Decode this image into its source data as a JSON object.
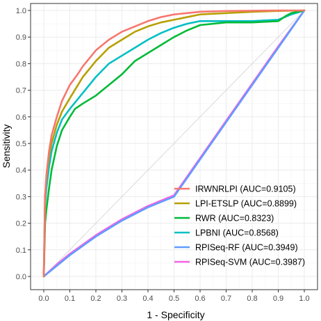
{
  "chart_data": {
    "type": "line",
    "xlabel": "1 - Specificity",
    "ylabel": "Sensitivity",
    "xlim": [
      0,
      1
    ],
    "ylim": [
      0,
      1
    ],
    "x_ticks": [
      0.0,
      0.1,
      0.2,
      0.3,
      0.4,
      0.5,
      0.6,
      0.7,
      0.8,
      0.9,
      1.0
    ],
    "x_tick_labels": [
      "0.0",
      "0.1",
      "0.2",
      "0.3",
      "0.4",
      "0.5",
      "0.6",
      "0.7",
      "0.8",
      "0.9",
      "1.0"
    ],
    "y_ticks": [
      0.0,
      0.1,
      0.2,
      0.3,
      0.4,
      0.5,
      0.6,
      0.7,
      0.8,
      0.9,
      1.0
    ],
    "y_tick_labels": [
      "0.0",
      "0.1",
      "0.2",
      "0.3",
      "0.4",
      "0.5",
      "0.6",
      "0.7",
      "0.8",
      "0.9",
      "1.0"
    ],
    "grid": true,
    "legend_position": "bottom-right",
    "diagonal_reference": true,
    "series": [
      {
        "name": "IRWNRLPI (AUC=0.9105)",
        "color": "#f8766d",
        "x": [
          0,
          0.005,
          0.01,
          0.02,
          0.03,
          0.05,
          0.07,
          0.1,
          0.13,
          0.15,
          0.2,
          0.25,
          0.3,
          0.35,
          0.4,
          0.45,
          0.5,
          0.55,
          0.6,
          0.7,
          0.8,
          0.9,
          1.0
        ],
        "y": [
          0,
          0.3,
          0.38,
          0.47,
          0.53,
          0.6,
          0.66,
          0.72,
          0.76,
          0.79,
          0.85,
          0.89,
          0.92,
          0.94,
          0.96,
          0.975,
          0.985,
          0.99,
          0.995,
          0.998,
          0.999,
          1.0,
          1.0
        ]
      },
      {
        "name": "LPI-ETSLP (AUC=0.8899)",
        "color": "#b79f00",
        "x": [
          0,
          0.005,
          0.01,
          0.02,
          0.03,
          0.05,
          0.07,
          0.1,
          0.15,
          0.2,
          0.25,
          0.3,
          0.35,
          0.4,
          0.45,
          0.5,
          0.55,
          0.6,
          0.7,
          0.8,
          0.9,
          1.0
        ],
        "y": [
          0,
          0.3,
          0.37,
          0.45,
          0.5,
          0.57,
          0.62,
          0.67,
          0.75,
          0.81,
          0.86,
          0.89,
          0.92,
          0.94,
          0.955,
          0.965,
          0.975,
          0.985,
          0.99,
          0.995,
          0.998,
          1.0
        ]
      },
      {
        "name": "RWR (AUC=0.8323)",
        "color": "#00ba38",
        "x": [
          0,
          0.005,
          0.01,
          0.02,
          0.03,
          0.05,
          0.07,
          0.1,
          0.12,
          0.15,
          0.2,
          0.25,
          0.3,
          0.33,
          0.35,
          0.4,
          0.45,
          0.5,
          0.55,
          0.6,
          0.7,
          0.8,
          0.9,
          0.93,
          0.95,
          1.0
        ],
        "y": [
          0,
          0.2,
          0.25,
          0.33,
          0.4,
          0.49,
          0.55,
          0.6,
          0.63,
          0.65,
          0.68,
          0.72,
          0.76,
          0.79,
          0.81,
          0.84,
          0.87,
          0.9,
          0.925,
          0.945,
          0.955,
          0.955,
          0.96,
          0.98,
          0.99,
          1.0
        ]
      },
      {
        "name": "LPBNI (AUC=0.8568)",
        "color": "#00bfc4",
        "x": [
          0,
          0.005,
          0.01,
          0.02,
          0.03,
          0.05,
          0.07,
          0.1,
          0.15,
          0.2,
          0.25,
          0.3,
          0.35,
          0.4,
          0.45,
          0.5,
          0.55,
          0.6,
          0.7,
          0.8,
          0.9,
          0.95,
          1.0
        ],
        "y": [
          0,
          0.27,
          0.33,
          0.41,
          0.47,
          0.54,
          0.59,
          0.63,
          0.69,
          0.75,
          0.8,
          0.83,
          0.86,
          0.89,
          0.915,
          0.935,
          0.95,
          0.96,
          0.96,
          0.96,
          0.965,
          0.985,
          1.0
        ]
      },
      {
        "name": "RPISeq-RF (AUC=0.3949)",
        "color": "#619cff",
        "x": [
          0,
          0.05,
          0.1,
          0.2,
          0.3,
          0.4,
          0.5,
          0.6,
          0.7,
          0.8,
          0.9,
          1.0
        ],
        "y": [
          0,
          0.04,
          0.08,
          0.15,
          0.21,
          0.26,
          0.3,
          0.44,
          0.58,
          0.72,
          0.86,
          1.0
        ]
      },
      {
        "name": "RPISeq-SVM (AUC=0.3987)",
        "color": "#f564e3",
        "x": [
          0,
          0.05,
          0.1,
          0.2,
          0.3,
          0.4,
          0.5,
          0.6,
          0.7,
          0.8,
          0.9,
          1.0
        ],
        "y": [
          0,
          0.045,
          0.085,
          0.155,
          0.215,
          0.265,
          0.305,
          0.445,
          0.585,
          0.725,
          0.865,
          1.0
        ]
      }
    ]
  }
}
